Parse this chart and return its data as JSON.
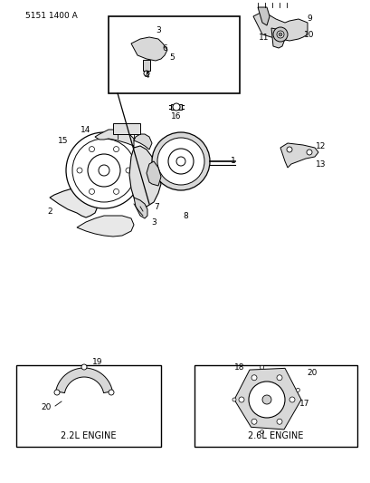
{
  "part_number": "5151 1400 A",
  "bg_color": "#ffffff",
  "line_color": "#000000",
  "fig_width": 4.1,
  "fig_height": 5.33,
  "dpi": 100,
  "labels": {
    "part_number": "5151 1400 A",
    "label_2_2L": "2.2L ENGINE",
    "label_2_6L": "2.6L ENGINE"
  },
  "numbers": {
    "main_assembly": [
      "1",
      "2",
      "3",
      "7",
      "8",
      "14",
      "15",
      "16"
    ],
    "inset_top_left": [
      "3",
      "4",
      "5",
      "6"
    ],
    "inset_top_right": [
      "9",
      "10",
      "11"
    ],
    "side_right": [
      "12",
      "13"
    ],
    "bottom_left_box": [
      "19",
      "20"
    ],
    "bottom_right_box": [
      "17",
      "18",
      "20"
    ]
  }
}
